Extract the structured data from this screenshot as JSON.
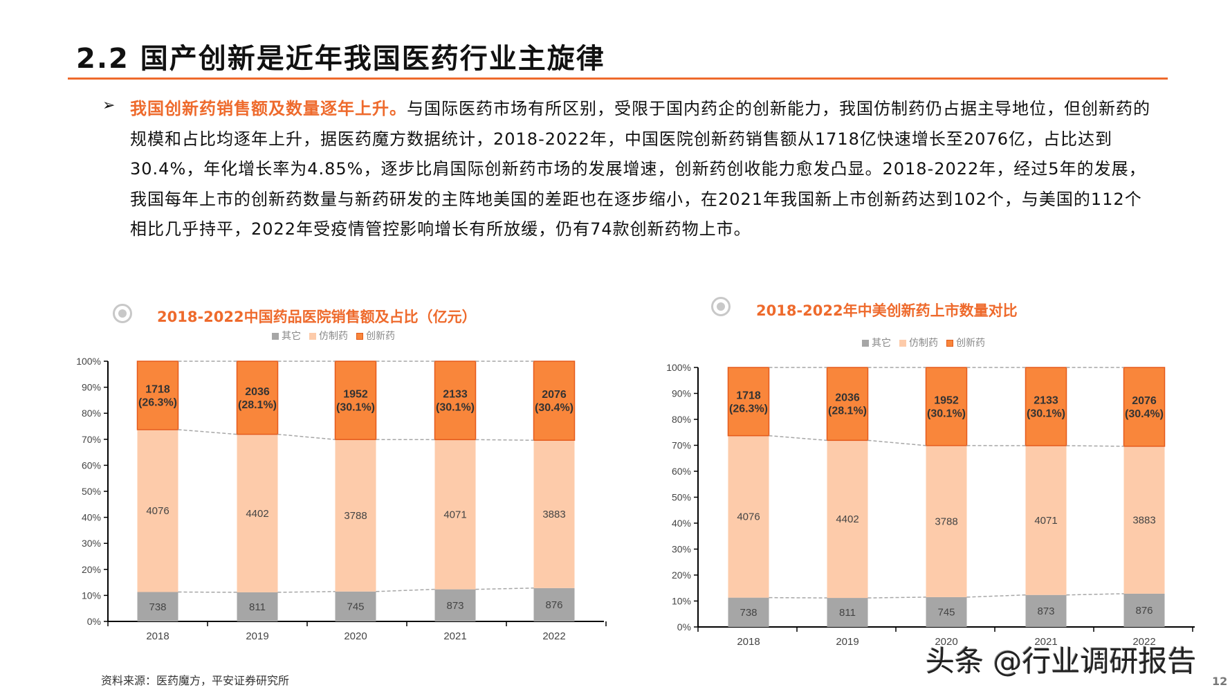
{
  "title": "2.2 国产创新是近年我国医药行业主旋律",
  "bullet": "➢",
  "paragraph": {
    "highlight": "我国创新药销售额及数量逐年上升。",
    "body": "与国际医药市场有所区别，受限于国内药企的创新能力，我国仿制药仍占据主导地位，但创新药的规模和占比均逐年上升，据医药魔方数据统计，2018-2022年，中国医院创新药销售额从1718亿快速增长至2076亿，占比达到30.4%，年化增长率为4.85%，逐步比肩国际创新药市场的发展增速，创新药创收能力愈发凸显。2018-2022年，经过5年的发展，我国每年上市的创新药数量与新药研发的主阵地美国的差距也在逐步缩小，在2021年我国新上市创新药达到102个，与美国的112个相比几乎持平，2022年受疫情管控影响增长有所放缓，仍有74款创新药物上市。"
  },
  "colors": {
    "accent": "#ee6a2c",
    "other": "#a6a6a6",
    "generic": "#fdcbaa",
    "innovative": "#f9863b"
  },
  "chart_data": [
    {
      "type": "bar",
      "stacked": "percent",
      "title": "2018-2022中国药品医院销售额及占比（亿元）",
      "categories": [
        "2018",
        "2019",
        "2020",
        "2021",
        "2022"
      ],
      "series": [
        {
          "name": "其它",
          "values": [
            738,
            811,
            745,
            873,
            876
          ]
        },
        {
          "name": "仿制药",
          "values": [
            4076,
            4402,
            3788,
            4071,
            3883
          ]
        },
        {
          "name": "创新药",
          "values": [
            1718,
            2036,
            1952,
            2133,
            2076
          ]
        }
      ],
      "innovative_labels": [
        "(26.3%)",
        "(28.1%)",
        "(30.1%)",
        "(30.1%)",
        "(30.4%)"
      ],
      "yticks": [
        "0%",
        "10%",
        "20%",
        "30%",
        "40%",
        "50%",
        "60%",
        "70%",
        "80%",
        "90%",
        "100%"
      ],
      "ylim": [
        0,
        100
      ],
      "legend": "top-center"
    },
    {
      "type": "bar",
      "stacked": "percent",
      "title": "2018-2022年中美创新药上市数量对比",
      "categories": [
        "2018",
        "2019",
        "2020",
        "2021",
        "2022"
      ],
      "series": [
        {
          "name": "其它",
          "values": [
            738,
            811,
            745,
            873,
            876
          ]
        },
        {
          "name": "仿制药",
          "values": [
            4076,
            4402,
            3788,
            4071,
            3883
          ]
        },
        {
          "name": "创新药",
          "values": [
            1718,
            2036,
            1952,
            2133,
            2076
          ]
        }
      ],
      "innovative_labels": [
        "(26.3%)",
        "(28.1%)",
        "(30.1%)",
        "(30.1%)",
        "(30.4%)"
      ],
      "yticks": [
        "0%",
        "10%",
        "20%",
        "30%",
        "40%",
        "50%",
        "60%",
        "70%",
        "80%",
        "90%",
        "100%"
      ],
      "ylim": [
        0,
        100
      ],
      "legend": "top-center"
    }
  ],
  "source": "资料来源：医药魔方，平安证券研究所",
  "watermark": "头条 @行业调研报告",
  "page_number": "12"
}
